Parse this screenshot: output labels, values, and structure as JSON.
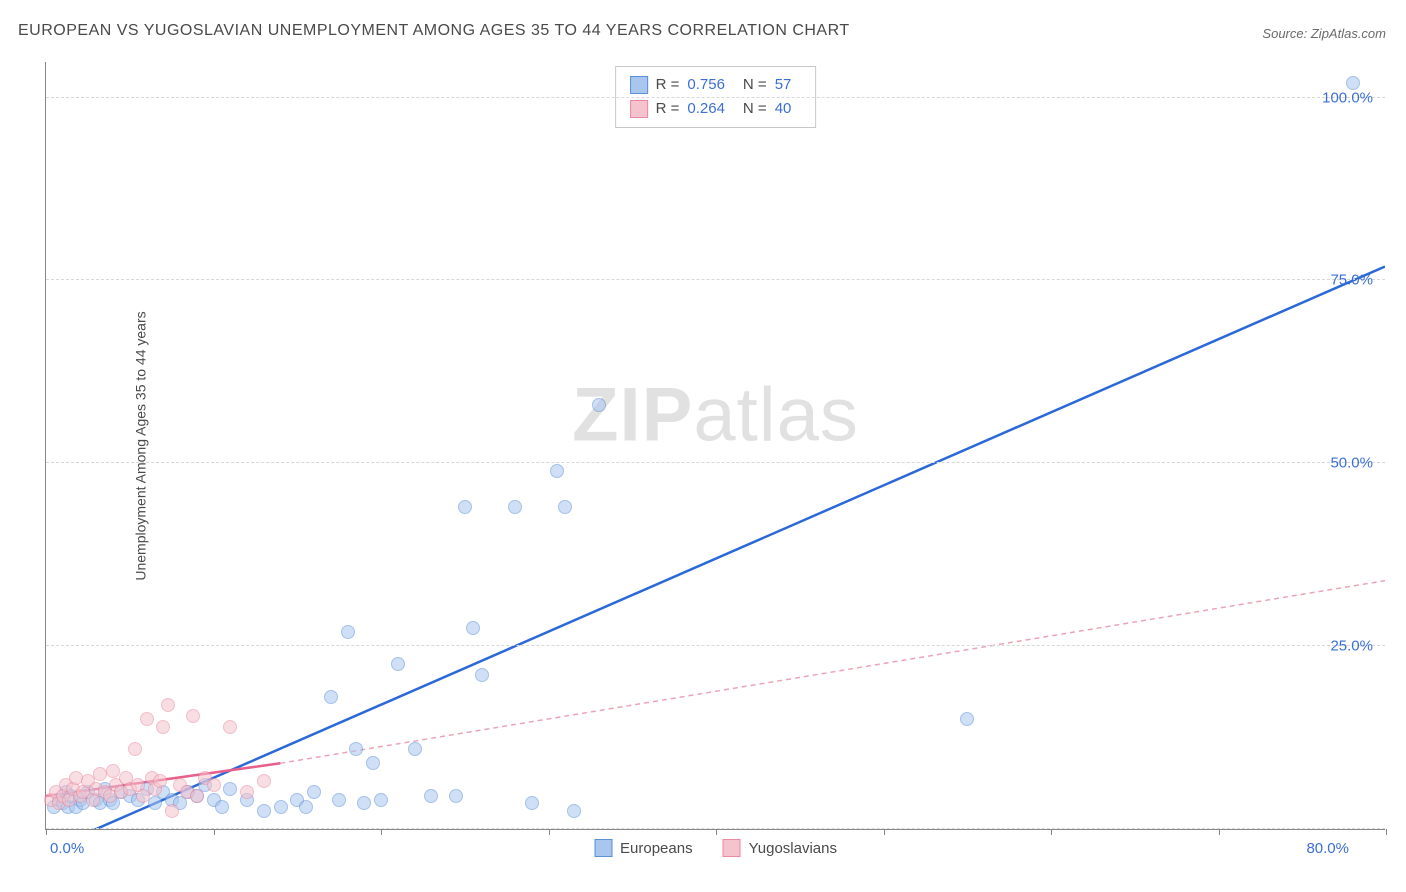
{
  "title": "EUROPEAN VS YUGOSLAVIAN UNEMPLOYMENT AMONG AGES 35 TO 44 YEARS CORRELATION CHART",
  "source_label": "Source:",
  "source_value": "ZipAtlas.com",
  "y_axis_label": "Unemployment Among Ages 35 to 44 years",
  "watermark_bold": "ZIP",
  "watermark_rest": "atlas",
  "chart": {
    "type": "scatter",
    "background_color": "#ffffff",
    "grid_color": "#d8d8d8",
    "axis_color": "#888888",
    "xlim": [
      0,
      80
    ],
    "ylim": [
      0,
      105
    ],
    "x_tick_positions": [
      0,
      10,
      20,
      30,
      40,
      50,
      60,
      70,
      80
    ],
    "x_tick_labels_shown": {
      "0": "0.0%",
      "80": "80.0%"
    },
    "y_grid_positions": [
      0,
      25,
      50,
      75,
      100
    ],
    "y_tick_labels": {
      "25": "25.0%",
      "50": "50.0%",
      "75": "75.0%",
      "100": "100.0%"
    },
    "tick_label_color": "#3b6fd6",
    "tick_fontsize": 15,
    "marker_radius": 7,
    "marker_opacity": 0.55,
    "series": [
      {
        "name": "Europeans",
        "fill_color": "#a9c6ef",
        "stroke_color": "#5b8fd6",
        "trend": {
          "x1": 1,
          "y1": -2,
          "x2": 80,
          "y2": 77,
          "color": "#2b68d8",
          "width": 2.5,
          "dash": "none"
        },
        "points": [
          [
            0.5,
            3
          ],
          [
            0.8,
            4
          ],
          [
            1,
            3.5
          ],
          [
            1.2,
            5
          ],
          [
            1.3,
            3
          ],
          [
            1.5,
            4.5
          ],
          [
            1.8,
            3
          ],
          [
            2,
            4
          ],
          [
            2.2,
            3.5
          ],
          [
            2.5,
            5
          ],
          [
            3,
            4
          ],
          [
            3.2,
            3.5
          ],
          [
            3.5,
            5.5
          ],
          [
            3.8,
            4
          ],
          [
            4,
            3.5
          ],
          [
            4.5,
            5
          ],
          [
            5,
            4.5
          ],
          [
            5.5,
            4
          ],
          [
            6,
            5.5
          ],
          [
            6.5,
            3.5
          ],
          [
            7,
            5
          ],
          [
            7.5,
            4
          ],
          [
            8,
            3.5
          ],
          [
            8.5,
            5
          ],
          [
            9,
            4.5
          ],
          [
            9.5,
            6
          ],
          [
            10,
            4
          ],
          [
            10.5,
            3
          ],
          [
            11,
            5.5
          ],
          [
            12,
            4
          ],
          [
            13,
            2.5
          ],
          [
            14,
            3
          ],
          [
            15,
            4
          ],
          [
            15.5,
            3
          ],
          [
            16,
            5
          ],
          [
            17,
            18
          ],
          [
            17.5,
            4
          ],
          [
            18,
            27
          ],
          [
            18.5,
            11
          ],
          [
            19,
            3.5
          ],
          [
            19.5,
            9
          ],
          [
            20,
            4
          ],
          [
            21,
            22.5
          ],
          [
            22,
            11
          ],
          [
            23,
            4.5
          ],
          [
            24.5,
            4.5
          ],
          [
            25,
            44
          ],
          [
            25.5,
            27.5
          ],
          [
            26,
            21
          ],
          [
            28,
            44
          ],
          [
            29,
            3.5
          ],
          [
            30.5,
            49
          ],
          [
            31,
            44
          ],
          [
            31.5,
            2.5
          ],
          [
            33,
            58
          ],
          [
            55,
            15
          ],
          [
            78,
            102
          ]
        ]
      },
      {
        "name": "Yugoslavians",
        "fill_color": "#f4c3cd",
        "stroke_color": "#e88aa0",
        "trend_solid": {
          "x1": 0,
          "y1": 4.5,
          "x2": 14,
          "y2": 9,
          "color": "#e75f8b",
          "width": 2.5,
          "dash": "none"
        },
        "trend_dashed": {
          "x1": 14,
          "y1": 9,
          "x2": 80,
          "y2": 34,
          "color": "#e9a5b5",
          "width": 1.5,
          "dash": "5,4"
        },
        "points": [
          [
            0.3,
            4
          ],
          [
            0.6,
            5
          ],
          [
            0.8,
            3.5
          ],
          [
            1,
            4.5
          ],
          [
            1.2,
            6
          ],
          [
            1.4,
            4
          ],
          [
            1.6,
            5.5
          ],
          [
            1.8,
            7
          ],
          [
            2,
            4.5
          ],
          [
            2.2,
            5
          ],
          [
            2.5,
            6.5
          ],
          [
            2.8,
            4
          ],
          [
            3,
            5.5
          ],
          [
            3.2,
            7.5
          ],
          [
            3.5,
            5
          ],
          [
            3.8,
            4.5
          ],
          [
            4,
            8
          ],
          [
            4.2,
            6
          ],
          [
            4.5,
            5
          ],
          [
            4.8,
            7
          ],
          [
            5,
            5.5
          ],
          [
            5.3,
            11
          ],
          [
            5.5,
            6
          ],
          [
            5.8,
            4.5
          ],
          [
            6,
            15
          ],
          [
            6.3,
            7
          ],
          [
            6.5,
            5.5
          ],
          [
            6.8,
            6.5
          ],
          [
            7,
            14
          ],
          [
            7.3,
            17
          ],
          [
            7.5,
            2.5
          ],
          [
            8,
            6
          ],
          [
            8.4,
            5
          ],
          [
            8.8,
            15.5
          ],
          [
            9,
            4.5
          ],
          [
            9.5,
            7
          ],
          [
            10,
            6
          ],
          [
            11,
            14
          ],
          [
            12,
            5
          ],
          [
            13,
            6.5
          ]
        ]
      }
    ]
  },
  "legend_top": {
    "r_label": "R =",
    "n_label": "N =",
    "rows": [
      {
        "swatch_fill": "#a9c6ef",
        "swatch_stroke": "#5b8fd6",
        "r": "0.756",
        "n": "57"
      },
      {
        "swatch_fill": "#f4c3cd",
        "swatch_stroke": "#e88aa0",
        "r": "0.264",
        "n": "40"
      }
    ]
  },
  "legend_bottom": {
    "items": [
      {
        "swatch_fill": "#a9c6ef",
        "swatch_stroke": "#5b8fd6",
        "label": "Europeans"
      },
      {
        "swatch_fill": "#f4c3cd",
        "swatch_stroke": "#e88aa0",
        "label": "Yugoslavians"
      }
    ]
  }
}
